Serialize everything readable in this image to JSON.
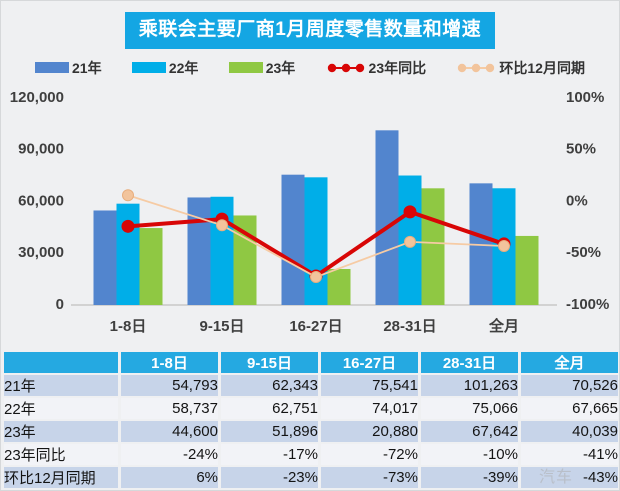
{
  "title": "乘联会主要厂商1月周度零售数量和增速",
  "watermark": "汽车",
  "colors": {
    "title_bg": "#14A6E3",
    "table_header_bg": "#25A9E1",
    "row_light_blue": "#C7D4E9",
    "row_white": "#F2F3F7",
    "bar_21": "#5285CE",
    "bar_22": "#00AEE8",
    "bar_23": "#8FC843",
    "line_yoy": "#D80606",
    "line_mom": "#F6CBA4",
    "axis_text": "#3F3F3F",
    "background": "#EFF0F2"
  },
  "legend": {
    "items": [
      {
        "label": "21年",
        "marker": "bar",
        "color": "#5285CE"
      },
      {
        "label": "22年",
        "marker": "bar",
        "color": "#00AEE8"
      },
      {
        "label": "23年",
        "marker": "bar",
        "color": "#8FC843"
      },
      {
        "label": "23年同比",
        "marker": "line",
        "color": "#D80606",
        "dot_color": "#D80606"
      },
      {
        "label": "环比12月同期",
        "marker": "line",
        "color": "#F6CBA4",
        "dot_color": "#F2C49C"
      }
    ]
  },
  "chart_data": {
    "type": "bar",
    "title": "乘联会主要厂商1月周度零售数量和增速",
    "categories": [
      "1-8日",
      "9-15日",
      "16-27日",
      "28-31日",
      "全月"
    ],
    "bar_series": [
      {
        "name": "21年",
        "color": "#5285CE",
        "values": [
          54793,
          62343,
          75541,
          101263,
          70526
        ]
      },
      {
        "name": "22年",
        "color": "#00AEE8",
        "values": [
          58737,
          62751,
          74017,
          75066,
          67665
        ]
      },
      {
        "name": "23年",
        "color": "#8FC843",
        "values": [
          44600,
          51896,
          20880,
          67642,
          40039
        ]
      }
    ],
    "line_series": [
      {
        "name": "23年同比",
        "color": "#D80606",
        "dot_color": "#D80606",
        "values": [
          -24,
          -17,
          -72,
          -10,
          -41
        ],
        "width": 4,
        "dot": 6.5
      },
      {
        "name": "环比12月同期",
        "color": "#F6CBA4",
        "dot_color": "#F2C49C",
        "dot_stroke": "#E8AE7E",
        "values": [
          6,
          -23,
          -73,
          -39,
          -43
        ],
        "width": 1.8,
        "dot": 5.5
      }
    ],
    "left_axis": {
      "ticks": [
        "120,000",
        "90,000",
        "60,000",
        "30,000",
        "0"
      ],
      "min": 0,
      "max": 120000,
      "label": ""
    },
    "right_axis": {
      "ticks": [
        "100%",
        "50%",
        "0%",
        "-50%",
        "-100%"
      ],
      "min": -100,
      "max": 100,
      "label": ""
    },
    "grid": false,
    "legend_position": "top",
    "xlabel": "",
    "ylabel": ""
  },
  "table": {
    "columns": [
      "",
      "1-8日",
      "9-15日",
      "16-27日",
      "28-31日",
      "全月"
    ],
    "rows": [
      {
        "label": "21年",
        "values": [
          "54,793",
          "62,343",
          "75,541",
          "101,263",
          "70,526"
        ]
      },
      {
        "label": "22年",
        "values": [
          "58,737",
          "62,751",
          "74,017",
          "75,066",
          "67,665"
        ]
      },
      {
        "label": "23年",
        "values": [
          "44,600",
          "51,896",
          "20,880",
          "67,642",
          "40,039"
        ]
      },
      {
        "label": "23年同比",
        "values": [
          "-24%",
          "-17%",
          "-72%",
          "-10%",
          "-41%"
        ]
      },
      {
        "label": "环比12月同期",
        "values": [
          "6%",
          "-23%",
          "-73%",
          "-39%",
          "-43%"
        ]
      }
    ]
  }
}
